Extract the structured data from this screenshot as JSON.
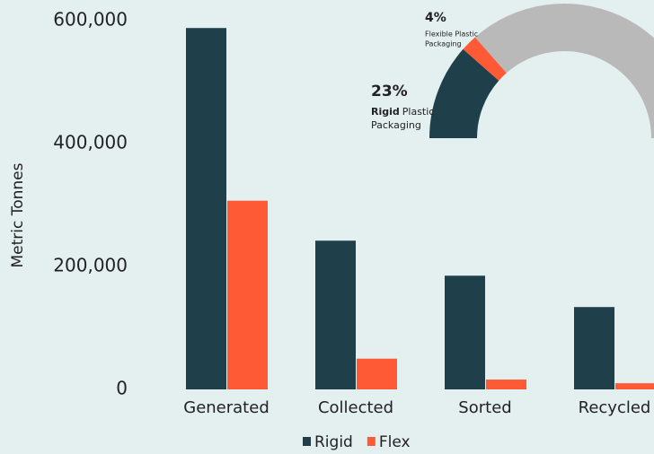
{
  "chart_data": [
    {
      "type": "bar",
      "y_label": "Metric Tonnes",
      "categories": [
        "Generated",
        "Collected",
        "Sorted",
        "Recycled"
      ],
      "series": [
        {
          "name": "Rigid",
          "color": "#1f3f4b",
          "values": [
            588000,
            242000,
            185000,
            134000
          ]
        },
        {
          "name": "Flex",
          "color": "#fe5a35",
          "values": [
            307000,
            50000,
            16000,
            10000
          ]
        }
      ],
      "ylim": [
        0,
        600000
      ],
      "yticks": [
        0,
        {
          "value": 200000,
          "label": "200,000"
        },
        {
          "value": 400000,
          "label": "400,000"
        },
        {
          "value": 600000,
          "label": "600,000"
        }
      ],
      "legend": "bottom"
    },
    {
      "type": "half-donut",
      "values": [
        23,
        4,
        73
      ],
      "value_labels": [
        "23%",
        "4%",
        null
      ],
      "colors": [
        "#1f3f4b",
        "#fe5a35",
        "#b9b9b9"
      ],
      "labels": [
        {
          "bold": "Rigid",
          "lines": [
            "Plastic",
            "Packaging"
          ]
        },
        {
          "lines": [
            "Flexible Plastic",
            "Packaging"
          ]
        },
        null
      ]
    }
  ]
}
